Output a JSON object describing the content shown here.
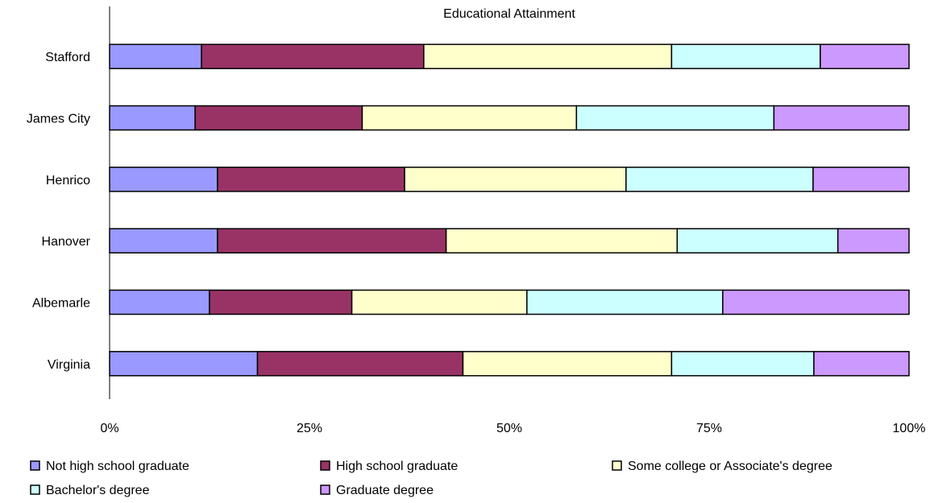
{
  "chart_data": {
    "type": "bar",
    "orientation": "horizontal",
    "stacked": "percent",
    "title": "Educational Attainment",
    "categories": [
      "Stafford",
      "James City",
      "Henrico",
      "Hanover",
      "Albemarle",
      "Virginia"
    ],
    "xlabel": "",
    "ylabel": "",
    "xlim": [
      0,
      100
    ],
    "x_ticks": [
      "0%",
      "25%",
      "50%",
      "75%",
      "100%"
    ],
    "grid": false,
    "legend_position": "bottom",
    "series": [
      {
        "name": "Not high school graduate",
        "color": "#9999ff",
        "values": [
          11.5,
          10.7,
          13.5,
          13.5,
          12.5,
          18.5
        ]
      },
      {
        "name": "High school graduate",
        "color": "#993366",
        "values": [
          27.8,
          20.9,
          23.4,
          28.6,
          17.8,
          25.7
        ]
      },
      {
        "name": "Some college or Associate's degree",
        "color": "#ffffcc",
        "values": [
          31.0,
          26.8,
          27.7,
          28.9,
          21.9,
          26.1
        ]
      },
      {
        "name": "Bachelor's degree",
        "color": "#ccffff",
        "values": [
          18.6,
          24.7,
          23.4,
          20.1,
          24.5,
          17.8
        ]
      },
      {
        "name": "Graduate degree",
        "color": "#cc99ff",
        "values": [
          11.1,
          16.9,
          12.0,
          8.9,
          23.3,
          11.9
        ]
      }
    ]
  }
}
